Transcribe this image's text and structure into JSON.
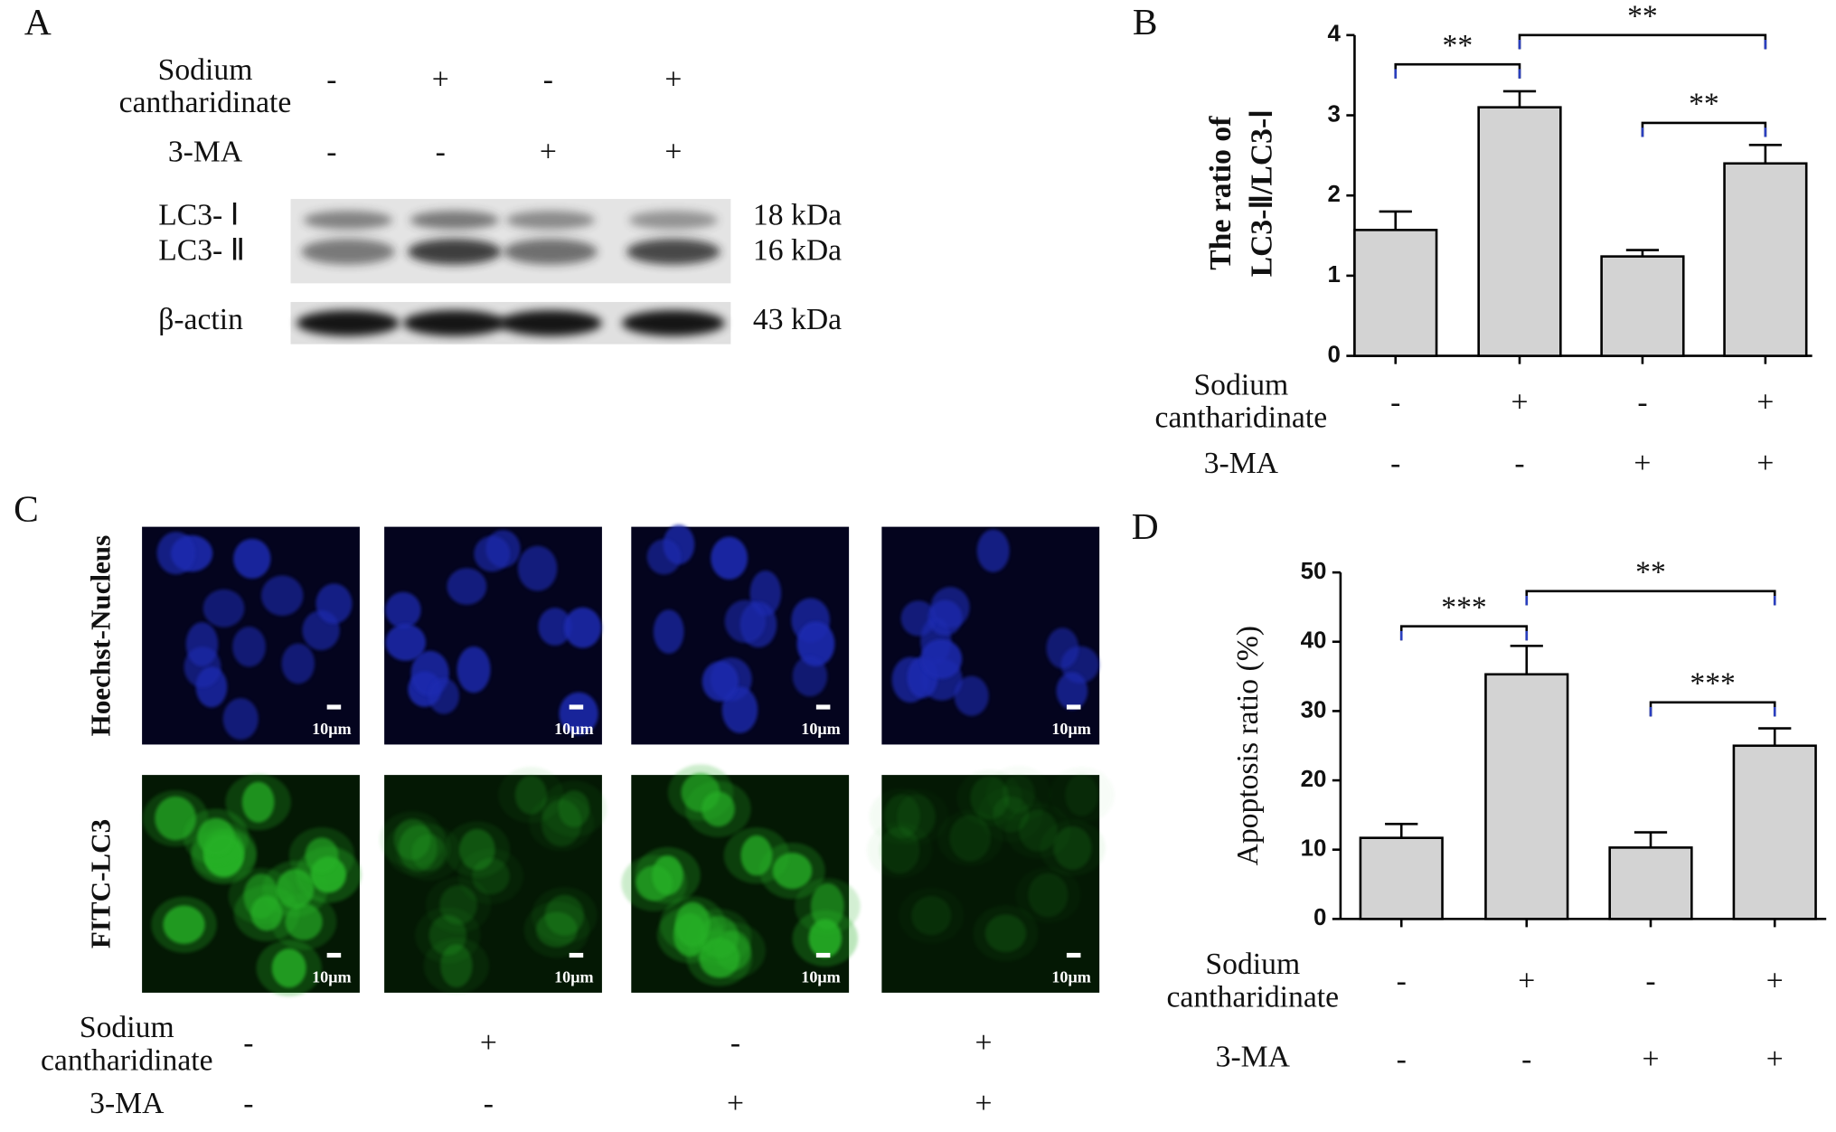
{
  "panel_labels": [
    "A",
    "B",
    "C",
    "D"
  ],
  "western_blot": {
    "conditions": [
      {
        "label": [
          "Sodium",
          "cantharidinate"
        ],
        "signs": [
          "-",
          "+",
          "-",
          "+"
        ]
      },
      {
        "label": [
          "3-MA"
        ],
        "signs": [
          "-",
          "-",
          "+",
          "+"
        ]
      }
    ],
    "bands": [
      {
        "label": "LC3- Ⅰ",
        "size": "18 kDa"
      },
      {
        "label": "LC3- Ⅱ",
        "size": "16 kDa"
      },
      {
        "label": "β-actin",
        "size": "43 kDa"
      }
    ]
  },
  "microscopy": {
    "rows": [
      "Hoechst-Nucleus",
      "FITC-LC3"
    ],
    "scale_bar": "10μm",
    "conditions": [
      {
        "label": [
          "Sodium",
          "cantharidinate"
        ],
        "signs": [
          "-",
          "+",
          "-",
          "+"
        ]
      },
      {
        "label": [
          "3-MA"
        ],
        "signs": [
          "-",
          "-",
          "+",
          "+"
        ]
      }
    ]
  },
  "chart_data": [
    {
      "type": "bar",
      "y_label": [
        "The ratio of",
        "LC3-Ⅱ/LC3-Ⅰ"
      ],
      "values": [
        1.57,
        3.1,
        1.24,
        2.4
      ],
      "errors": [
        0.23,
        0.2,
        0.08,
        0.23
      ],
      "color": "#d3d3d3",
      "ylim": [
        0,
        4
      ],
      "yticks": [
        0,
        1,
        2,
        3,
        4
      ],
      "annotations": [
        "**",
        "**",
        "**"
      ],
      "conditions": [
        {
          "label": [
            "Sodium",
            "cantharidinate"
          ],
          "signs": [
            "-",
            "+",
            "-",
            "+"
          ]
        },
        {
          "label": [
            "3-MA"
          ],
          "signs": [
            "-",
            "-",
            "+",
            "+"
          ]
        }
      ]
    },
    {
      "type": "bar",
      "y_label": [
        "Apoptosis  ratio (%)"
      ],
      "values": [
        11.7,
        35.3,
        10.3,
        25.0
      ],
      "errors": [
        2.0,
        4.1,
        2.2,
        2.5
      ],
      "color": "#d3d3d3",
      "ylim": [
        0,
        50
      ],
      "yticks": [
        0,
        10,
        20,
        30,
        40,
        50
      ],
      "annotations": [
        "***",
        "**",
        "***"
      ],
      "conditions": [
        {
          "label": [
            "Sodium",
            "cantharidinate"
          ],
          "signs": [
            "-",
            "+",
            "-",
            "+"
          ]
        },
        {
          "label": [
            "3-MA"
          ],
          "signs": [
            "-",
            "-",
            "+",
            "+"
          ]
        }
      ]
    }
  ]
}
